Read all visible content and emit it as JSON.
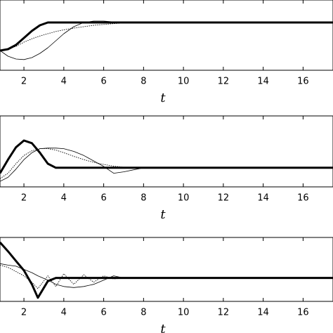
{
  "chart_data": [
    {
      "type": "line",
      "xlabel": "t",
      "x": [
        0.8,
        1.2,
        1.6,
        2,
        2.4,
        2.8,
        3.2,
        3.6,
        4,
        4.5,
        5,
        5.5,
        6,
        6.5,
        7,
        8,
        10,
        12,
        14,
        16,
        17.5
      ],
      "xlim": [
        0.8,
        17.5
      ],
      "xticks": [
        2,
        4,
        6,
        8,
        10,
        12,
        14,
        16
      ],
      "ylim": [
        -0.7,
        1.8
      ],
      "series": [
        {
          "color": "#000000",
          "style": "thick",
          "values": [
            0,
            0.05,
            0.2,
            0.45,
            0.7,
            0.9,
            1,
            1,
            1,
            1,
            1,
            1,
            1,
            1,
            1,
            1,
            1,
            1,
            1,
            1,
            1
          ]
        },
        {
          "color": "#000000",
          "style": "thin",
          "values": [
            0,
            -0.2,
            -0.3,
            -0.32,
            -0.25,
            -0.1,
            0.1,
            0.35,
            0.6,
            0.85,
            1,
            1.05,
            1.05,
            1.02,
            1,
            1,
            1,
            1,
            1,
            1,
            1
          ]
        },
        {
          "color": "#000000",
          "style": "dotted",
          "values": [
            0,
            0.05,
            0.15,
            0.3,
            0.42,
            0.52,
            0.6,
            0.68,
            0.74,
            0.8,
            0.85,
            0.9,
            0.93,
            0.96,
            0.98,
            1,
            1,
            1,
            1,
            1,
            1
          ]
        }
      ]
    },
    {
      "type": "line",
      "xlabel": "t",
      "x": [
        0.8,
        1.2,
        1.6,
        2,
        2.4,
        2.8,
        3.2,
        3.6,
        4,
        4.5,
        5,
        5.5,
        6,
        6.5,
        7,
        8,
        10,
        12,
        14,
        16,
        17.5
      ],
      "xlim": [
        0.8,
        17.5
      ],
      "xticks": [
        2,
        4,
        6,
        8,
        10,
        12,
        14,
        16
      ],
      "ylim": [
        -0.7,
        1.9
      ],
      "series": [
        {
          "color": "#000000",
          "style": "thick",
          "values": [
            -0.2,
            0.3,
            0.75,
            1,
            0.9,
            0.55,
            0.15,
            0,
            0,
            0,
            0,
            0,
            0,
            0,
            0,
            0,
            0,
            0,
            0,
            0,
            0
          ]
        },
        {
          "color": "#000000",
          "style": "thin",
          "values": [
            -0.5,
            -0.35,
            -0.05,
            0.3,
            0.55,
            0.7,
            0.72,
            0.72,
            0.7,
            0.6,
            0.45,
            0.25,
            0.05,
            -0.2,
            -0.15,
            0,
            0,
            0,
            0,
            0,
            0
          ]
        },
        {
          "color": "#000000",
          "style": "dotted",
          "values": [
            -0.4,
            -0.2,
            0.15,
            0.45,
            0.62,
            0.7,
            0.7,
            0.65,
            0.55,
            0.42,
            0.3,
            0.2,
            0.12,
            0.06,
            0.02,
            0,
            0,
            0,
            0,
            0,
            0
          ]
        }
      ]
    },
    {
      "type": "line",
      "xlabel": "t",
      "x": [
        0.8,
        1.2,
        1.6,
        2,
        2.4,
        2.7,
        3.2,
        3.6,
        4,
        4.5,
        5,
        5.5,
        6,
        6.5,
        7,
        8,
        10,
        12,
        14,
        16,
        17.5
      ],
      "xlim": [
        0.8,
        17.5
      ],
      "xticks": [
        2,
        4,
        6,
        8,
        10,
        12,
        14,
        16
      ],
      "ylim": [
        -1.1,
        1.9
      ],
      "series": [
        {
          "color": "#000000",
          "style": "thick",
          "values": [
            1.67,
            1.25,
            0.8,
            0.35,
            -0.3,
            -0.93,
            -0.15,
            0,
            0,
            0,
            0,
            0,
            0,
            0,
            0,
            0,
            0,
            0,
            0,
            0,
            0
          ]
        },
        {
          "color": "#000000",
          "style": "thin",
          "values": [
            0.67,
            0.6,
            0.55,
            0.4,
            0.25,
            0.1,
            -0.1,
            -0.3,
            -0.4,
            -0.45,
            -0.4,
            -0.3,
            -0.1,
            0.1,
            0,
            0,
            0,
            0,
            0,
            0,
            0
          ]
        },
        {
          "color": "#000000",
          "style": "dotted",
          "values": [
            0.6,
            0.5,
            0.3,
            0.1,
            -0.2,
            -0.5,
            0.1,
            -0.4,
            0.2,
            -0.3,
            0.15,
            -0.2,
            0.1,
            -0.05,
            0,
            0,
            0,
            0,
            0,
            0,
            0
          ]
        }
      ]
    }
  ]
}
